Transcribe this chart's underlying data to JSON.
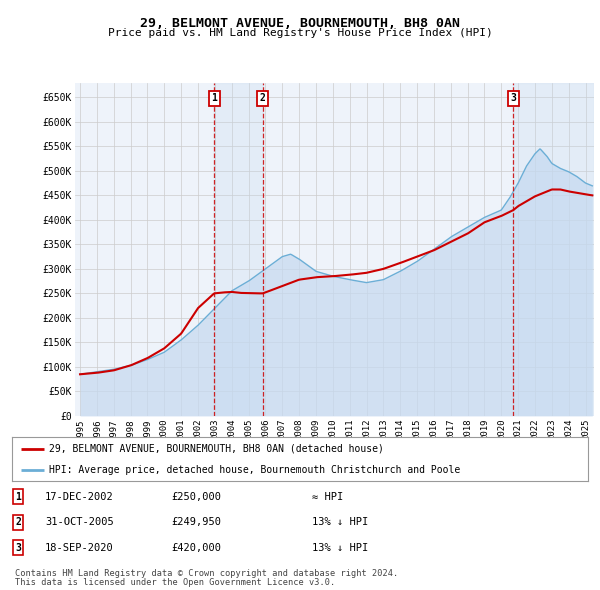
{
  "title": "29, BELMONT AVENUE, BOURNEMOUTH, BH8 0AN",
  "subtitle": "Price paid vs. HM Land Registry's House Price Index (HPI)",
  "ylim": [
    0,
    680000
  ],
  "yticks": [
    0,
    50000,
    100000,
    150000,
    200000,
    250000,
    300000,
    350000,
    400000,
    450000,
    500000,
    550000,
    600000,
    650000
  ],
  "ylabels": [
    "£0",
    "£50K",
    "£100K",
    "£150K",
    "£200K",
    "£250K",
    "£300K",
    "£350K",
    "£400K",
    "£450K",
    "£500K",
    "£550K",
    "£600K",
    "£650K"
  ],
  "xlim": [
    1994.7,
    2025.5
  ],
  "xticks": [
    1995,
    1996,
    1997,
    1998,
    1999,
    2000,
    2001,
    2002,
    2003,
    2004,
    2005,
    2006,
    2007,
    2008,
    2009,
    2010,
    2011,
    2012,
    2013,
    2014,
    2015,
    2016,
    2017,
    2018,
    2019,
    2020,
    2021,
    2022,
    2023,
    2024,
    2025
  ],
  "sale_year_decimals": [
    2002.958,
    2005.831,
    2020.714
  ],
  "sale_prices": [
    250000,
    249950,
    420000
  ],
  "sale_labels": [
    "1",
    "2",
    "3"
  ],
  "legend_red": "29, BELMONT AVENUE, BOURNEMOUTH, BH8 0AN (detached house)",
  "legend_blue": "HPI: Average price, detached house, Bournemouth Christchurch and Poole",
  "table_rows": [
    {
      "label": "1",
      "date": "17-DEC-2002",
      "price": "£250,000",
      "vs_hpi": "≈ HPI"
    },
    {
      "label": "2",
      "date": "31-OCT-2005",
      "price": "£249,950",
      "vs_hpi": "13% ↓ HPI"
    },
    {
      "label": "3",
      "date": "18-SEP-2020",
      "price": "£420,000",
      "vs_hpi": "13% ↓ HPI"
    }
  ],
  "footnote1": "Contains HM Land Registry data © Crown copyright and database right 2024.",
  "footnote2": "This data is licensed under the Open Government Licence v3.0.",
  "color_red": "#cc0000",
  "color_blue_fill": "#c5d9f0",
  "color_blue_line": "#6baed6",
  "color_grid": "#cccccc",
  "color_bg_plot": "#eef3fa",
  "color_bg_fig": "#ffffff",
  "color_vline": "#cc0000",
  "color_shade": "#c5d9f0"
}
